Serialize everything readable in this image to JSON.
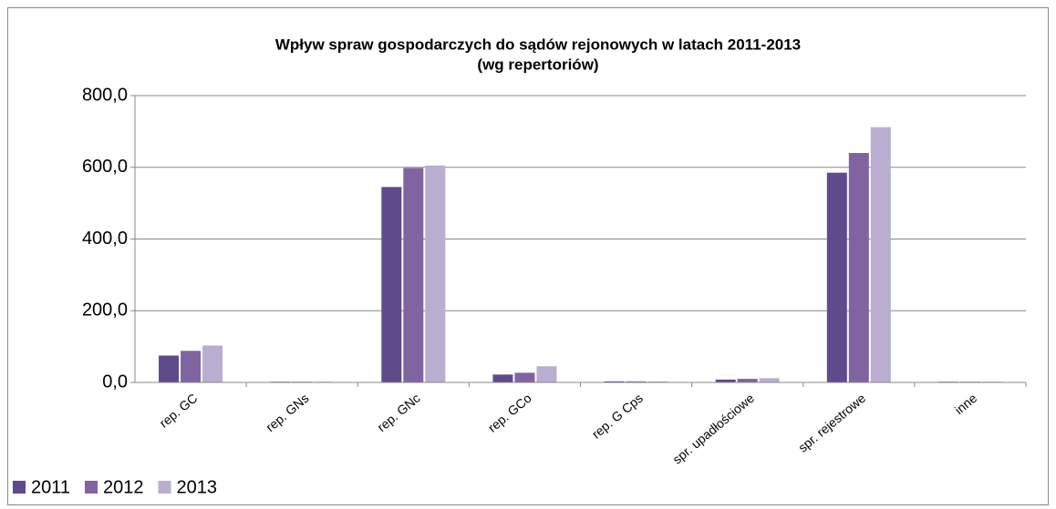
{
  "chart_data": {
    "type": "bar",
    "title": "Wpływ spraw gospodarczych do sądów rejonowych w latach 2011-2013",
    "subtitle": "(wg repertoriów)",
    "categories": [
      "rep. GC",
      "rep. GNs",
      "rep. GNc",
      "rep. GCo",
      "rep. G Cps",
      "spr. upadłościowe",
      "spr. rejestrowe",
      "inne"
    ],
    "series": [
      {
        "name": "2011",
        "color": "#5f4a8b",
        "values": [
          75,
          2,
          545,
          22,
          3,
          8,
          585,
          2
        ]
      },
      {
        "name": "2012",
        "color": "#8064a2",
        "values": [
          88,
          2,
          598,
          27,
          3,
          10,
          640,
          2
        ]
      },
      {
        "name": "2013",
        "color": "#b9aed0",
        "values": [
          103,
          2,
          605,
          45,
          3,
          12,
          712,
          2
        ]
      }
    ],
    "ylim": [
      0,
      800
    ],
    "yticks": [
      {
        "value": 0,
        "label": "0,0"
      },
      {
        "value": 200,
        "label": "200,0"
      },
      {
        "value": 400,
        "label": "400,0"
      },
      {
        "value": 600,
        "label": "600,0"
      },
      {
        "value": 800,
        "label": "800,0"
      }
    ],
    "grid": true,
    "legend": "bottom-left"
  }
}
